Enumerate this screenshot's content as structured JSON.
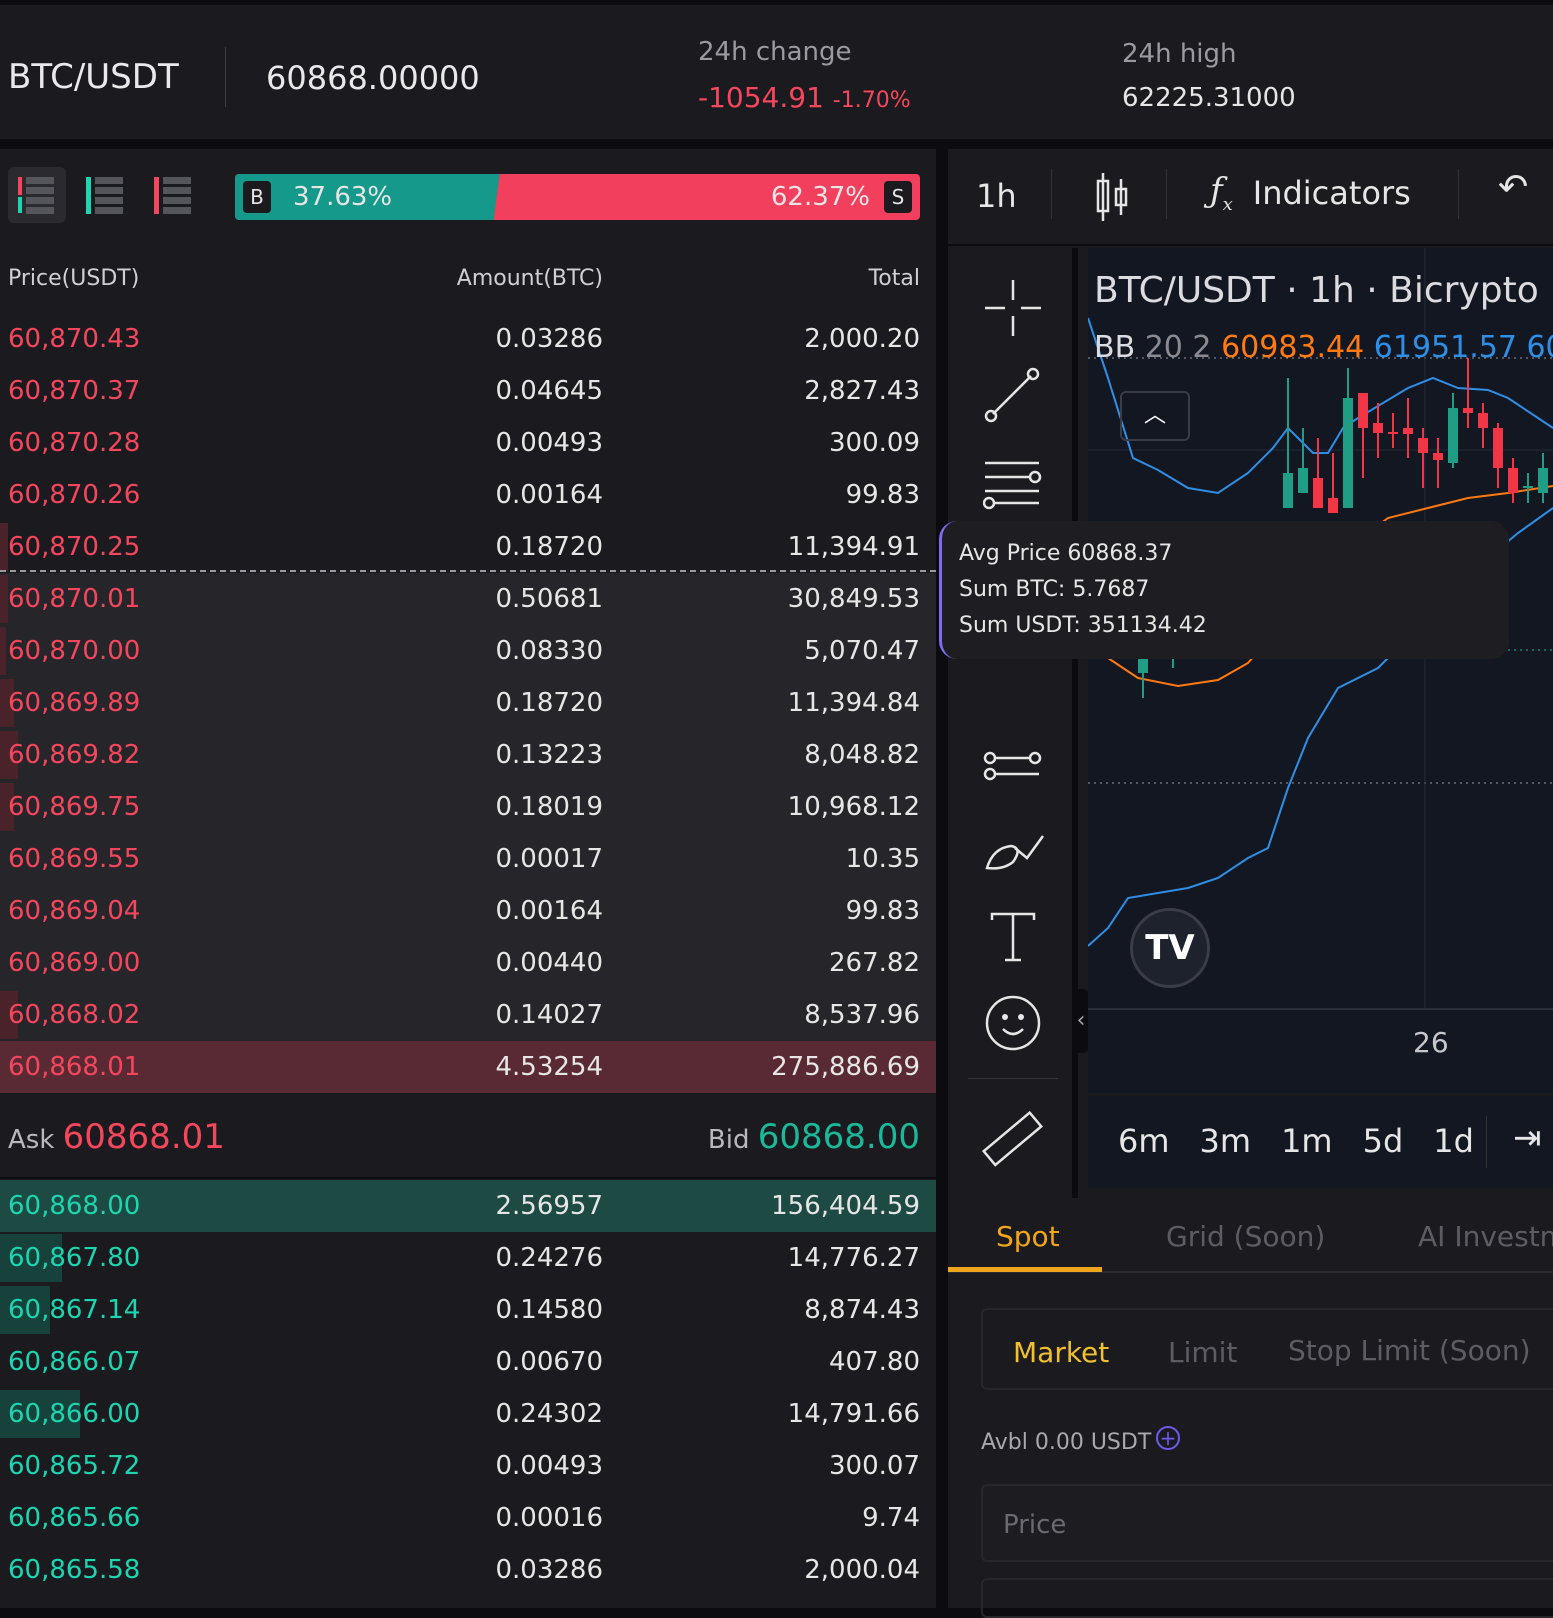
{
  "header": {
    "pair": "BTC/USDT",
    "price": "60868.00000",
    "change_label": "24h change",
    "change_value": "-1054.91",
    "change_pct": "-1.70%",
    "high_label": "24h high",
    "high_value": "62225.31000"
  },
  "orderbook": {
    "buy_pct": "37.63%",
    "sell_pct": "62.37%",
    "buy_badge": "B",
    "sell_badge": "S",
    "buy_fraction": 0.3763,
    "columns": [
      "Price(USDT)",
      "Amount(BTC)",
      "Total"
    ],
    "asks": [
      {
        "price": "60,870.43",
        "amount": "0.03286",
        "total": "2,000.20"
      },
      {
        "price": "60,870.37",
        "amount": "0.04645",
        "total": "2,827.43"
      },
      {
        "price": "60,870.28",
        "amount": "0.00493",
        "total": "300.09"
      },
      {
        "price": "60,870.26",
        "amount": "0.00164",
        "total": "99.83"
      },
      {
        "price": "60,870.25",
        "amount": "0.18720",
        "total": "11,394.91"
      },
      {
        "price": "60,870.01",
        "amount": "0.50681",
        "total": "30,849.53"
      },
      {
        "price": "60,870.00",
        "amount": "0.08330",
        "total": "5,070.47"
      },
      {
        "price": "60,869.89",
        "amount": "0.18720",
        "total": "11,394.84"
      },
      {
        "price": "60,869.82",
        "amount": "0.13223",
        "total": "8,048.82"
      },
      {
        "price": "60,869.75",
        "amount": "0.18019",
        "total": "10,968.12"
      },
      {
        "price": "60,869.55",
        "amount": "0.00017",
        "total": "10.35"
      },
      {
        "price": "60,869.04",
        "amount": "0.00164",
        "total": "99.83"
      },
      {
        "price": "60,869.00",
        "amount": "0.00440",
        "total": "267.82"
      },
      {
        "price": "60,868.02",
        "amount": "0.14027",
        "total": "8,537.96"
      },
      {
        "price": "60,868.01",
        "amount": "4.53254",
        "total": "275,886.69"
      }
    ],
    "ask_label": "Ask",
    "ask_value": "60868.01",
    "bid_label": "Bid",
    "bid_value": "60868.00",
    "bids": [
      {
        "price": "60,868.00",
        "amount": "2.56957",
        "total": "156,404.59"
      },
      {
        "price": "60,867.80",
        "amount": "0.24276",
        "total": "14,776.27"
      },
      {
        "price": "60,867.14",
        "amount": "0.14580",
        "total": "8,874.43"
      },
      {
        "price": "60,866.07",
        "amount": "0.00670",
        "total": "407.80"
      },
      {
        "price": "60,866.00",
        "amount": "0.24302",
        "total": "14,791.66"
      },
      {
        "price": "60,865.72",
        "amount": "0.00493",
        "total": "300.07"
      },
      {
        "price": "60,865.66",
        "amount": "0.00016",
        "total": "9.74"
      },
      {
        "price": "60,865.58",
        "amount": "0.03286",
        "total": "2,000.04"
      }
    ],
    "tooltip": {
      "avg": "Avg Price 60868.37",
      "sum_btc": "Sum BTC: 5.7687",
      "sum_usdt": "Sum USDT: 351134.42"
    }
  },
  "chart": {
    "interval": "1h",
    "indicators_label": "Indicators",
    "title": "BTC/USDT · 1h · Bicrypto",
    "bb_label": "BB",
    "bb_params": "20 2",
    "bb_basis": "60983.44",
    "bb_upper": "61951.57",
    "bb_lower_partial": "60",
    "time_label": "26",
    "ranges": [
      "6m",
      "3m",
      "1m",
      "5d",
      "1d"
    ],
    "colors": {
      "up": "#1f9e85",
      "down": "#f23645",
      "band": "#2f8fe6",
      "basis": "#ff7a12"
    }
  },
  "trade": {
    "tabs": [
      "Spot",
      "Grid (Soon)",
      "AI Investme"
    ],
    "order_types": [
      "Market",
      "Limit",
      "Stop Limit (Soon)"
    ],
    "avbl": "Avbl 0.00 USDT",
    "price_placeholder": "Price",
    "accent": "#f0a61c"
  }
}
